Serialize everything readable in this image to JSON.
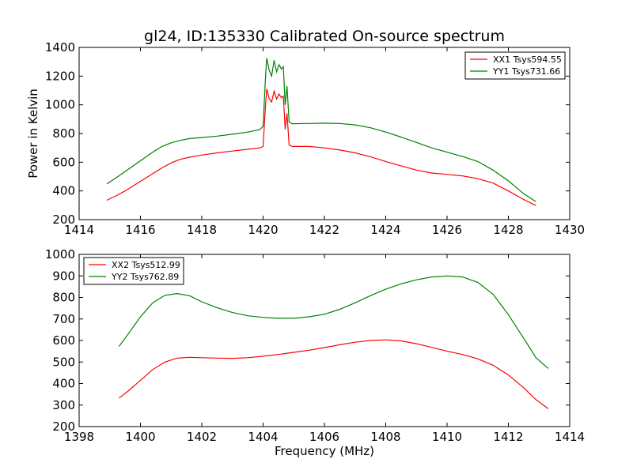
{
  "figure": {
    "title": "gl24, ID:135330 Calibrated On-source spectrum",
    "xlabel": "Frequency (MHz)",
    "ylabel": "Power in Kelvin"
  },
  "colors": {
    "red": "#ff0000",
    "green": "#008000",
    "axes": "#000000",
    "background": "#ffffff"
  },
  "chart_data": [
    {
      "type": "line",
      "title": "gl24, ID:135330 Calibrated On-source spectrum",
      "ylabel": "Power in Kelvin",
      "xlabel": "",
      "xlim": [
        1414,
        1430
      ],
      "ylim": [
        200,
        1400
      ],
      "xticks": [
        1414,
        1416,
        1418,
        1420,
        1422,
        1424,
        1426,
        1428,
        1430
      ],
      "yticks": [
        200,
        400,
        600,
        800,
        1000,
        1200,
        1400
      ],
      "grid": false,
      "legend": "top-right",
      "series": [
        {
          "name": "XX1 Tsys594.55",
          "color": "#ff0000",
          "points": [
            [
              1414.9,
              335
            ],
            [
              1415.2,
              365
            ],
            [
              1415.5,
              400
            ],
            [
              1415.8,
              440
            ],
            [
              1416.1,
              480
            ],
            [
              1416.4,
              520
            ],
            [
              1416.7,
              560
            ],
            [
              1417.0,
              595
            ],
            [
              1417.3,
              620
            ],
            [
              1417.6,
              635
            ],
            [
              1418.0,
              650
            ],
            [
              1418.5,
              665
            ],
            [
              1419.0,
              678
            ],
            [
              1419.5,
              690
            ],
            [
              1419.9,
              700
            ],
            [
              1420.0,
              710
            ],
            [
              1420.08,
              1000
            ],
            [
              1420.12,
              1110
            ],
            [
              1420.2,
              1040
            ],
            [
              1420.28,
              1020
            ],
            [
              1420.36,
              1095
            ],
            [
              1420.44,
              1040
            ],
            [
              1420.52,
              1075
            ],
            [
              1420.6,
              1050
            ],
            [
              1420.66,
              1060
            ],
            [
              1420.72,
              830
            ],
            [
              1420.78,
              940
            ],
            [
              1420.85,
              720
            ],
            [
              1420.95,
              710
            ],
            [
              1421.5,
              710
            ],
            [
              1422.0,
              700
            ],
            [
              1422.5,
              685
            ],
            [
              1423.0,
              665
            ],
            [
              1423.5,
              638
            ],
            [
              1424.0,
              605
            ],
            [
              1424.5,
              575
            ],
            [
              1425.0,
              545
            ],
            [
              1425.5,
              525
            ],
            [
              1426.0,
              515
            ],
            [
              1426.5,
              505
            ],
            [
              1427.0,
              485
            ],
            [
              1427.5,
              455
            ],
            [
              1428.0,
              400
            ],
            [
              1428.5,
              340
            ],
            [
              1428.9,
              298
            ]
          ]
        },
        {
          "name": "YY1 Tsys731.66",
          "color": "#008000",
          "points": [
            [
              1414.9,
              448
            ],
            [
              1415.2,
              490
            ],
            [
              1415.5,
              535
            ],
            [
              1415.8,
              580
            ],
            [
              1416.1,
              625
            ],
            [
              1416.4,
              670
            ],
            [
              1416.7,
              710
            ],
            [
              1417.0,
              735
            ],
            [
              1417.3,
              752
            ],
            [
              1417.6,
              765
            ],
            [
              1418.0,
              772
            ],
            [
              1418.5,
              782
            ],
            [
              1419.0,
              795
            ],
            [
              1419.5,
              810
            ],
            [
              1419.9,
              828
            ],
            [
              1420.0,
              850
            ],
            [
              1420.08,
              1200
            ],
            [
              1420.12,
              1325
            ],
            [
              1420.2,
              1240
            ],
            [
              1420.28,
              1200
            ],
            [
              1420.36,
              1310
            ],
            [
              1420.44,
              1230
            ],
            [
              1420.52,
              1280
            ],
            [
              1420.6,
              1250
            ],
            [
              1420.66,
              1265
            ],
            [
              1420.72,
              1000
            ],
            [
              1420.78,
              1130
            ],
            [
              1420.85,
              880
            ],
            [
              1420.95,
              868
            ],
            [
              1421.5,
              870
            ],
            [
              1422.0,
              872
            ],
            [
              1422.5,
              870
            ],
            [
              1423.0,
              860
            ],
            [
              1423.5,
              840
            ],
            [
              1424.0,
              810
            ],
            [
              1424.5,
              775
            ],
            [
              1425.0,
              738
            ],
            [
              1425.5,
              700
            ],
            [
              1426.0,
              670
            ],
            [
              1426.5,
              640
            ],
            [
              1427.0,
              605
            ],
            [
              1427.5,
              545
            ],
            [
              1428.0,
              470
            ],
            [
              1428.5,
              380
            ],
            [
              1428.9,
              325
            ]
          ]
        }
      ]
    },
    {
      "type": "line",
      "title": "",
      "xlabel": "Frequency (MHz)",
      "ylabel": "",
      "xlim": [
        1398,
        1414
      ],
      "ylim": [
        200,
        1000
      ],
      "xticks": [
        1398,
        1400,
        1402,
        1404,
        1406,
        1408,
        1410,
        1412,
        1414
      ],
      "yticks": [
        200,
        300,
        400,
        500,
        600,
        700,
        800,
        900,
        1000
      ],
      "grid": false,
      "legend": "top-left",
      "series": [
        {
          "name": "XX2 Tsys512.99",
          "color": "#ff0000",
          "points": [
            [
              1399.3,
              333
            ],
            [
              1399.6,
              365
            ],
            [
              1400.0,
              415
            ],
            [
              1400.4,
              465
            ],
            [
              1400.8,
              500
            ],
            [
              1401.2,
              518
            ],
            [
              1401.6,
              522
            ],
            [
              1402.0,
              520
            ],
            [
              1402.5,
              518
            ],
            [
              1403.0,
              517
            ],
            [
              1403.5,
              520
            ],
            [
              1404.0,
              527
            ],
            [
              1404.5,
              535
            ],
            [
              1405.0,
              545
            ],
            [
              1405.5,
              555
            ],
            [
              1406.0,
              567
            ],
            [
              1406.5,
              580
            ],
            [
              1407.0,
              592
            ],
            [
              1407.5,
              600
            ],
            [
              1408.0,
              603
            ],
            [
              1408.5,
              598
            ],
            [
              1409.0,
              585
            ],
            [
              1409.5,
              568
            ],
            [
              1410.0,
              550
            ],
            [
              1410.5,
              535
            ],
            [
              1411.0,
              515
            ],
            [
              1411.5,
              485
            ],
            [
              1412.0,
              440
            ],
            [
              1412.5,
              380
            ],
            [
              1412.9,
              325
            ],
            [
              1413.3,
              283
            ]
          ]
        },
        {
          "name": "YY2 Tsys762.89",
          "color": "#008000",
          "points": [
            [
              1399.3,
              572
            ],
            [
              1399.6,
              630
            ],
            [
              1400.0,
              710
            ],
            [
              1400.4,
              775
            ],
            [
              1400.8,
              810
            ],
            [
              1401.2,
              818
            ],
            [
              1401.6,
              808
            ],
            [
              1402.0,
              780
            ],
            [
              1402.5,
              752
            ],
            [
              1403.0,
              730
            ],
            [
              1403.5,
              715
            ],
            [
              1404.0,
              707
            ],
            [
              1404.5,
              703
            ],
            [
              1405.0,
              703
            ],
            [
              1405.5,
              710
            ],
            [
              1406.0,
              722
            ],
            [
              1406.5,
              745
            ],
            [
              1407.0,
              775
            ],
            [
              1407.5,
              808
            ],
            [
              1408.0,
              838
            ],
            [
              1408.5,
              863
            ],
            [
              1409.0,
              882
            ],
            [
              1409.5,
              895
            ],
            [
              1410.0,
              900
            ],
            [
              1410.5,
              895
            ],
            [
              1411.0,
              870
            ],
            [
              1411.5,
              815
            ],
            [
              1412.0,
              720
            ],
            [
              1412.5,
              610
            ],
            [
              1412.9,
              520
            ],
            [
              1413.3,
              470
            ]
          ]
        }
      ]
    }
  ]
}
